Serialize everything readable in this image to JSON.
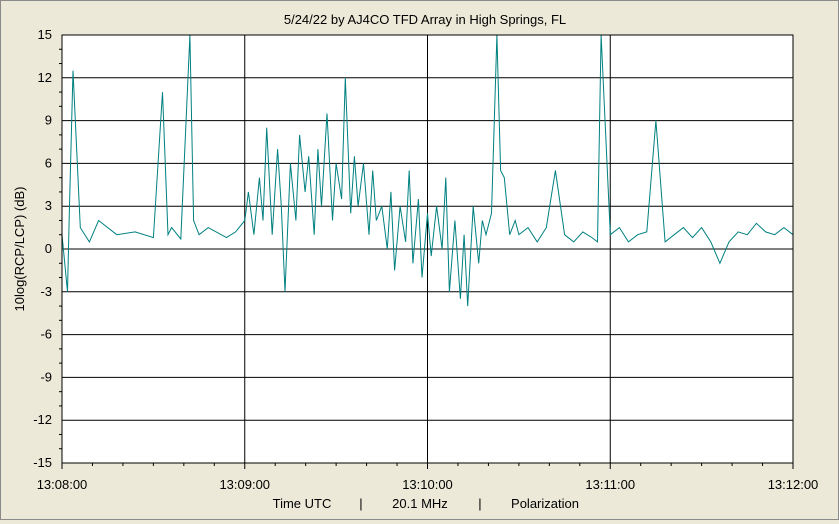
{
  "chart_data": {
    "type": "line",
    "title": "5/24/22  by  AJ4CO TFD Array  in  High Springs, FL",
    "ylabel": "10log(RCP/LCP)  (dB)",
    "xlabel_parts": [
      "Time UTC",
      "|",
      "20.1 MHz",
      "|",
      "Polarization"
    ],
    "ylim": [
      -15,
      15
    ],
    "xlim_minutes": [
      0,
      4
    ],
    "yticks": [
      15,
      12,
      9,
      6,
      3,
      0,
      -3,
      -6,
      -9,
      -12,
      -15
    ],
    "xtick_labels": [
      "13:08:00",
      "13:09:00",
      "13:10:00",
      "13:11:00",
      "13:12:00"
    ],
    "grid": true,
    "series_color": "#008080",
    "series": [
      {
        "x_minutes": [
          0.0,
          0.03,
          0.04,
          0.06,
          0.1,
          0.15,
          0.2,
          0.3,
          0.4,
          0.5,
          0.55,
          0.58,
          0.6,
          0.65,
          0.7,
          0.72,
          0.75,
          0.8,
          0.9,
          0.95,
          1.0,
          1.02,
          1.05,
          1.08,
          1.1,
          1.12,
          1.15,
          1.18,
          1.2,
          1.22,
          1.25,
          1.28,
          1.3,
          1.33,
          1.35,
          1.38,
          1.4,
          1.42,
          1.45,
          1.48,
          1.5,
          1.53,
          1.55,
          1.58,
          1.6,
          1.62,
          1.65,
          1.68,
          1.7,
          1.72,
          1.75,
          1.78,
          1.8,
          1.82,
          1.85,
          1.88,
          1.9,
          1.92,
          1.95,
          1.97,
          2.0,
          2.02,
          2.05,
          2.08,
          2.1,
          2.12,
          2.15,
          2.18,
          2.2,
          2.22,
          2.25,
          2.28,
          2.3,
          2.32,
          2.35,
          2.38,
          2.4,
          2.42,
          2.45,
          2.48,
          2.5,
          2.55,
          2.6,
          2.65,
          2.7,
          2.75,
          2.8,
          2.85,
          2.9,
          2.93,
          2.95,
          3.0,
          3.05,
          3.1,
          3.15,
          3.2,
          3.25,
          3.3,
          3.35,
          3.4,
          3.45,
          3.5,
          3.55,
          3.6,
          3.65,
          3.7,
          3.75,
          3.8,
          3.85,
          3.9,
          3.95,
          4.0
        ],
        "values": [
          1.0,
          -3.0,
          2.5,
          12.5,
          1.5,
          0.5,
          2.0,
          1.0,
          1.2,
          0.8,
          11.0,
          1.0,
          1.5,
          0.7,
          15.0,
          2.0,
          1.0,
          1.5,
          0.8,
          1.2,
          2.0,
          4.0,
          1.0,
          5.0,
          2.0,
          8.5,
          1.0,
          7.0,
          3.0,
          -3.0,
          6.0,
          2.0,
          8.0,
          4.0,
          6.5,
          1.0,
          7.0,
          3.0,
          9.5,
          2.0,
          6.0,
          3.5,
          12.0,
          2.5,
          6.5,
          3.0,
          6.0,
          1.0,
          5.5,
          2.0,
          3.0,
          0.0,
          4.0,
          -1.5,
          3.0,
          0.5,
          5.5,
          -1.0,
          3.5,
          -2.0,
          2.5,
          -0.5,
          3.0,
          0.0,
          5.0,
          -3.0,
          2.0,
          -3.5,
          1.0,
          -4.0,
          3.0,
          -1.0,
          2.0,
          1.0,
          2.5,
          15.0,
          5.5,
          5.0,
          1.0,
          2.0,
          1.0,
          1.5,
          0.5,
          1.5,
          5.5,
          1.0,
          0.5,
          1.2,
          0.8,
          0.5,
          15.0,
          1.0,
          1.5,
          0.5,
          1.0,
          1.2,
          9.0,
          0.5,
          1.0,
          1.5,
          0.8,
          1.5,
          0.5,
          -1.0,
          0.5,
          1.2,
          1.0,
          1.8,
          1.2,
          1.0,
          1.5,
          1.0
        ]
      }
    ]
  }
}
